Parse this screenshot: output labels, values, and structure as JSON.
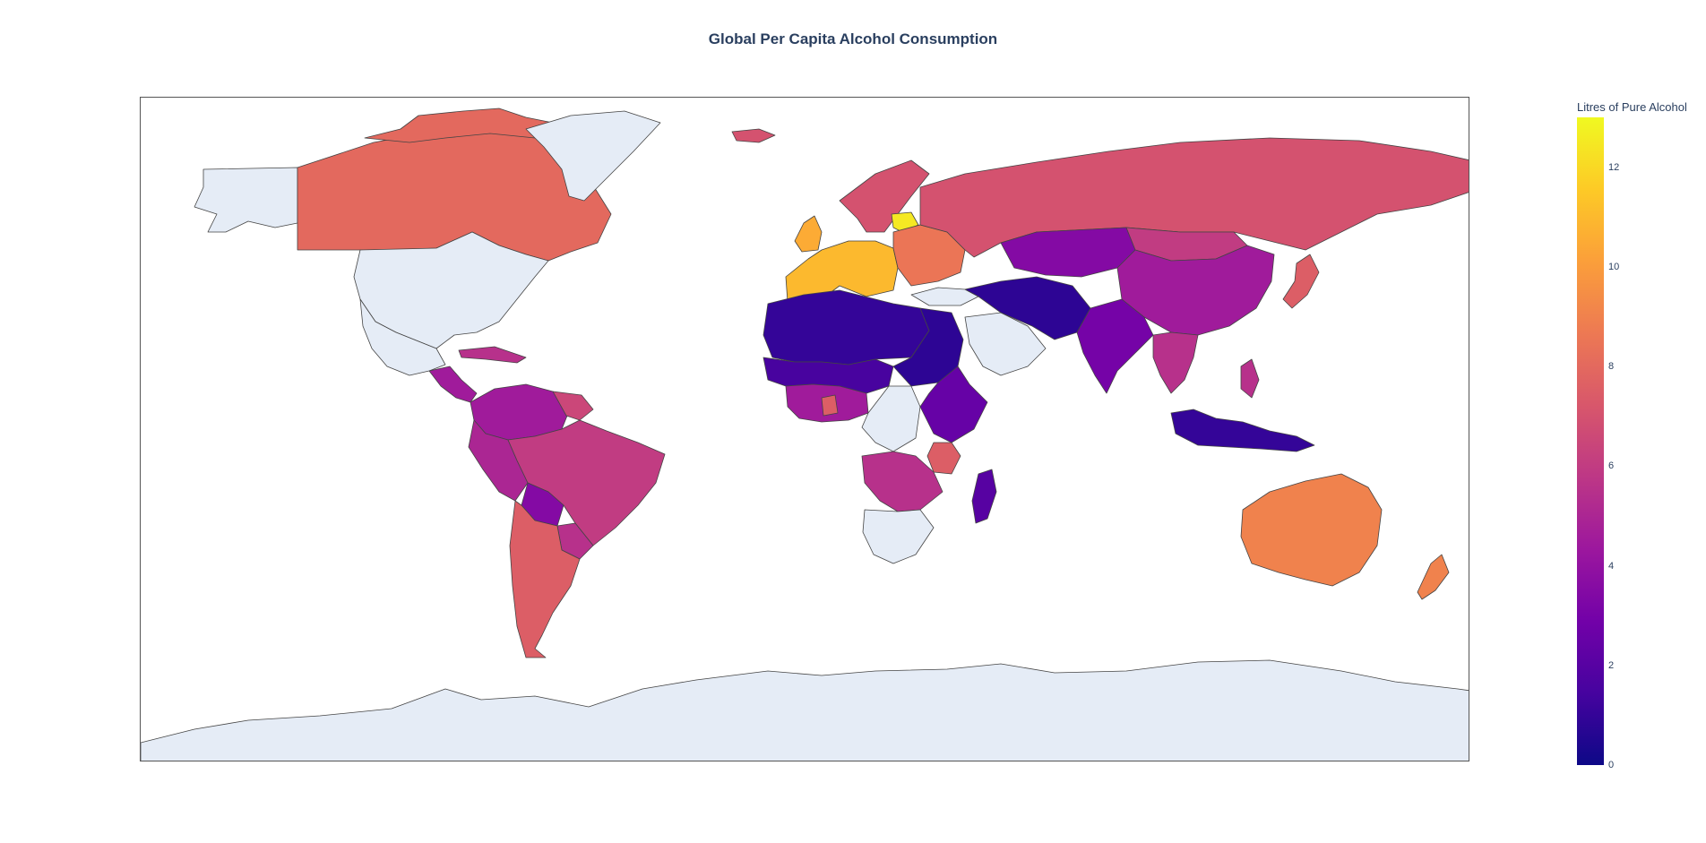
{
  "title": "Global Per Capita Alcohol Consumption",
  "colorbar": {
    "title": "Litres of Pure Alcohol",
    "min": 0,
    "max": 13,
    "ticks": [
      0,
      2,
      4,
      6,
      8,
      10,
      12
    ],
    "colorscale": [
      "#0d0887",
      "#46039f",
      "#7201a8",
      "#9c179e",
      "#bd3786",
      "#d8576b",
      "#ed7953",
      "#fb9f3a",
      "#fdca26",
      "#f0f921"
    ]
  },
  "no_data_color": "#e5ecf6",
  "chart_data": {
    "type": "choropleth",
    "title": "Global Per Capita Alcohol Consumption",
    "colorbar_title": "Litres of Pure Alcohol",
    "range": [
      0,
      13
    ],
    "regions": [
      {
        "id": "canada",
        "value": 8.0
      },
      {
        "id": "alaska",
        "value": null
      },
      {
        "id": "usa",
        "value": null
      },
      {
        "id": "mexico",
        "value": null
      },
      {
        "id": "central-america",
        "value": 4.5
      },
      {
        "id": "caribbean",
        "value": 5.5
      },
      {
        "id": "greenland",
        "value": null
      },
      {
        "id": "iceland",
        "value": 7.0
      },
      {
        "id": "colombia-venezuela",
        "value": 4.5
      },
      {
        "id": "guyana-suriname",
        "value": 6.5
      },
      {
        "id": "brazil",
        "value": 6.0
      },
      {
        "id": "peru-ecuador",
        "value": 5.0
      },
      {
        "id": "bolivia",
        "value": 3.5
      },
      {
        "id": "paraguay",
        "value": 5.5
      },
      {
        "id": "argentina-chile",
        "value": 7.5
      },
      {
        "id": "uk-ireland",
        "value": 10.5
      },
      {
        "id": "scandinavia",
        "value": 7.0
      },
      {
        "id": "western-europe",
        "value": 11.0
      },
      {
        "id": "baltics",
        "value": 12.5
      },
      {
        "id": "eastern-europe",
        "value": 8.5
      },
      {
        "id": "russia",
        "value": 7.0
      },
      {
        "id": "turkey",
        "value": null
      },
      {
        "id": "north-africa",
        "value": 1.0
      },
      {
        "id": "sahel",
        "value": 1.5
      },
      {
        "id": "egypt-sudan",
        "value": 0.8
      },
      {
        "id": "west-africa",
        "value": 4.5
      },
      {
        "id": "ghana",
        "value": 7.5
      },
      {
        "id": "central-africa",
        "value": null
      },
      {
        "id": "east-africa",
        "value": 2.5
      },
      {
        "id": "tanzania",
        "value": 7.5
      },
      {
        "id": "angola-zambia",
        "value": 5.5
      },
      {
        "id": "southern-africa",
        "value": null
      },
      {
        "id": "madagascar",
        "value": 2.0
      },
      {
        "id": "arabia",
        "value": null
      },
      {
        "id": "middle-east",
        "value": 0.8
      },
      {
        "id": "central-asia",
        "value": 3.5
      },
      {
        "id": "mongolia",
        "value": 6.0
      },
      {
        "id": "china",
        "value": 4.5
      },
      {
        "id": "india",
        "value": 3.0
      },
      {
        "id": "southeast-asia",
        "value": 5.5
      },
      {
        "id": "japan",
        "value": 7.5
      },
      {
        "id": "philippines",
        "value": 5.5
      },
      {
        "id": "indonesia",
        "value": 1.0
      },
      {
        "id": "australia",
        "value": 9.0
      },
      {
        "id": "new-zealand",
        "value": 9.0
      },
      {
        "id": "antarctica",
        "value": null
      }
    ]
  }
}
